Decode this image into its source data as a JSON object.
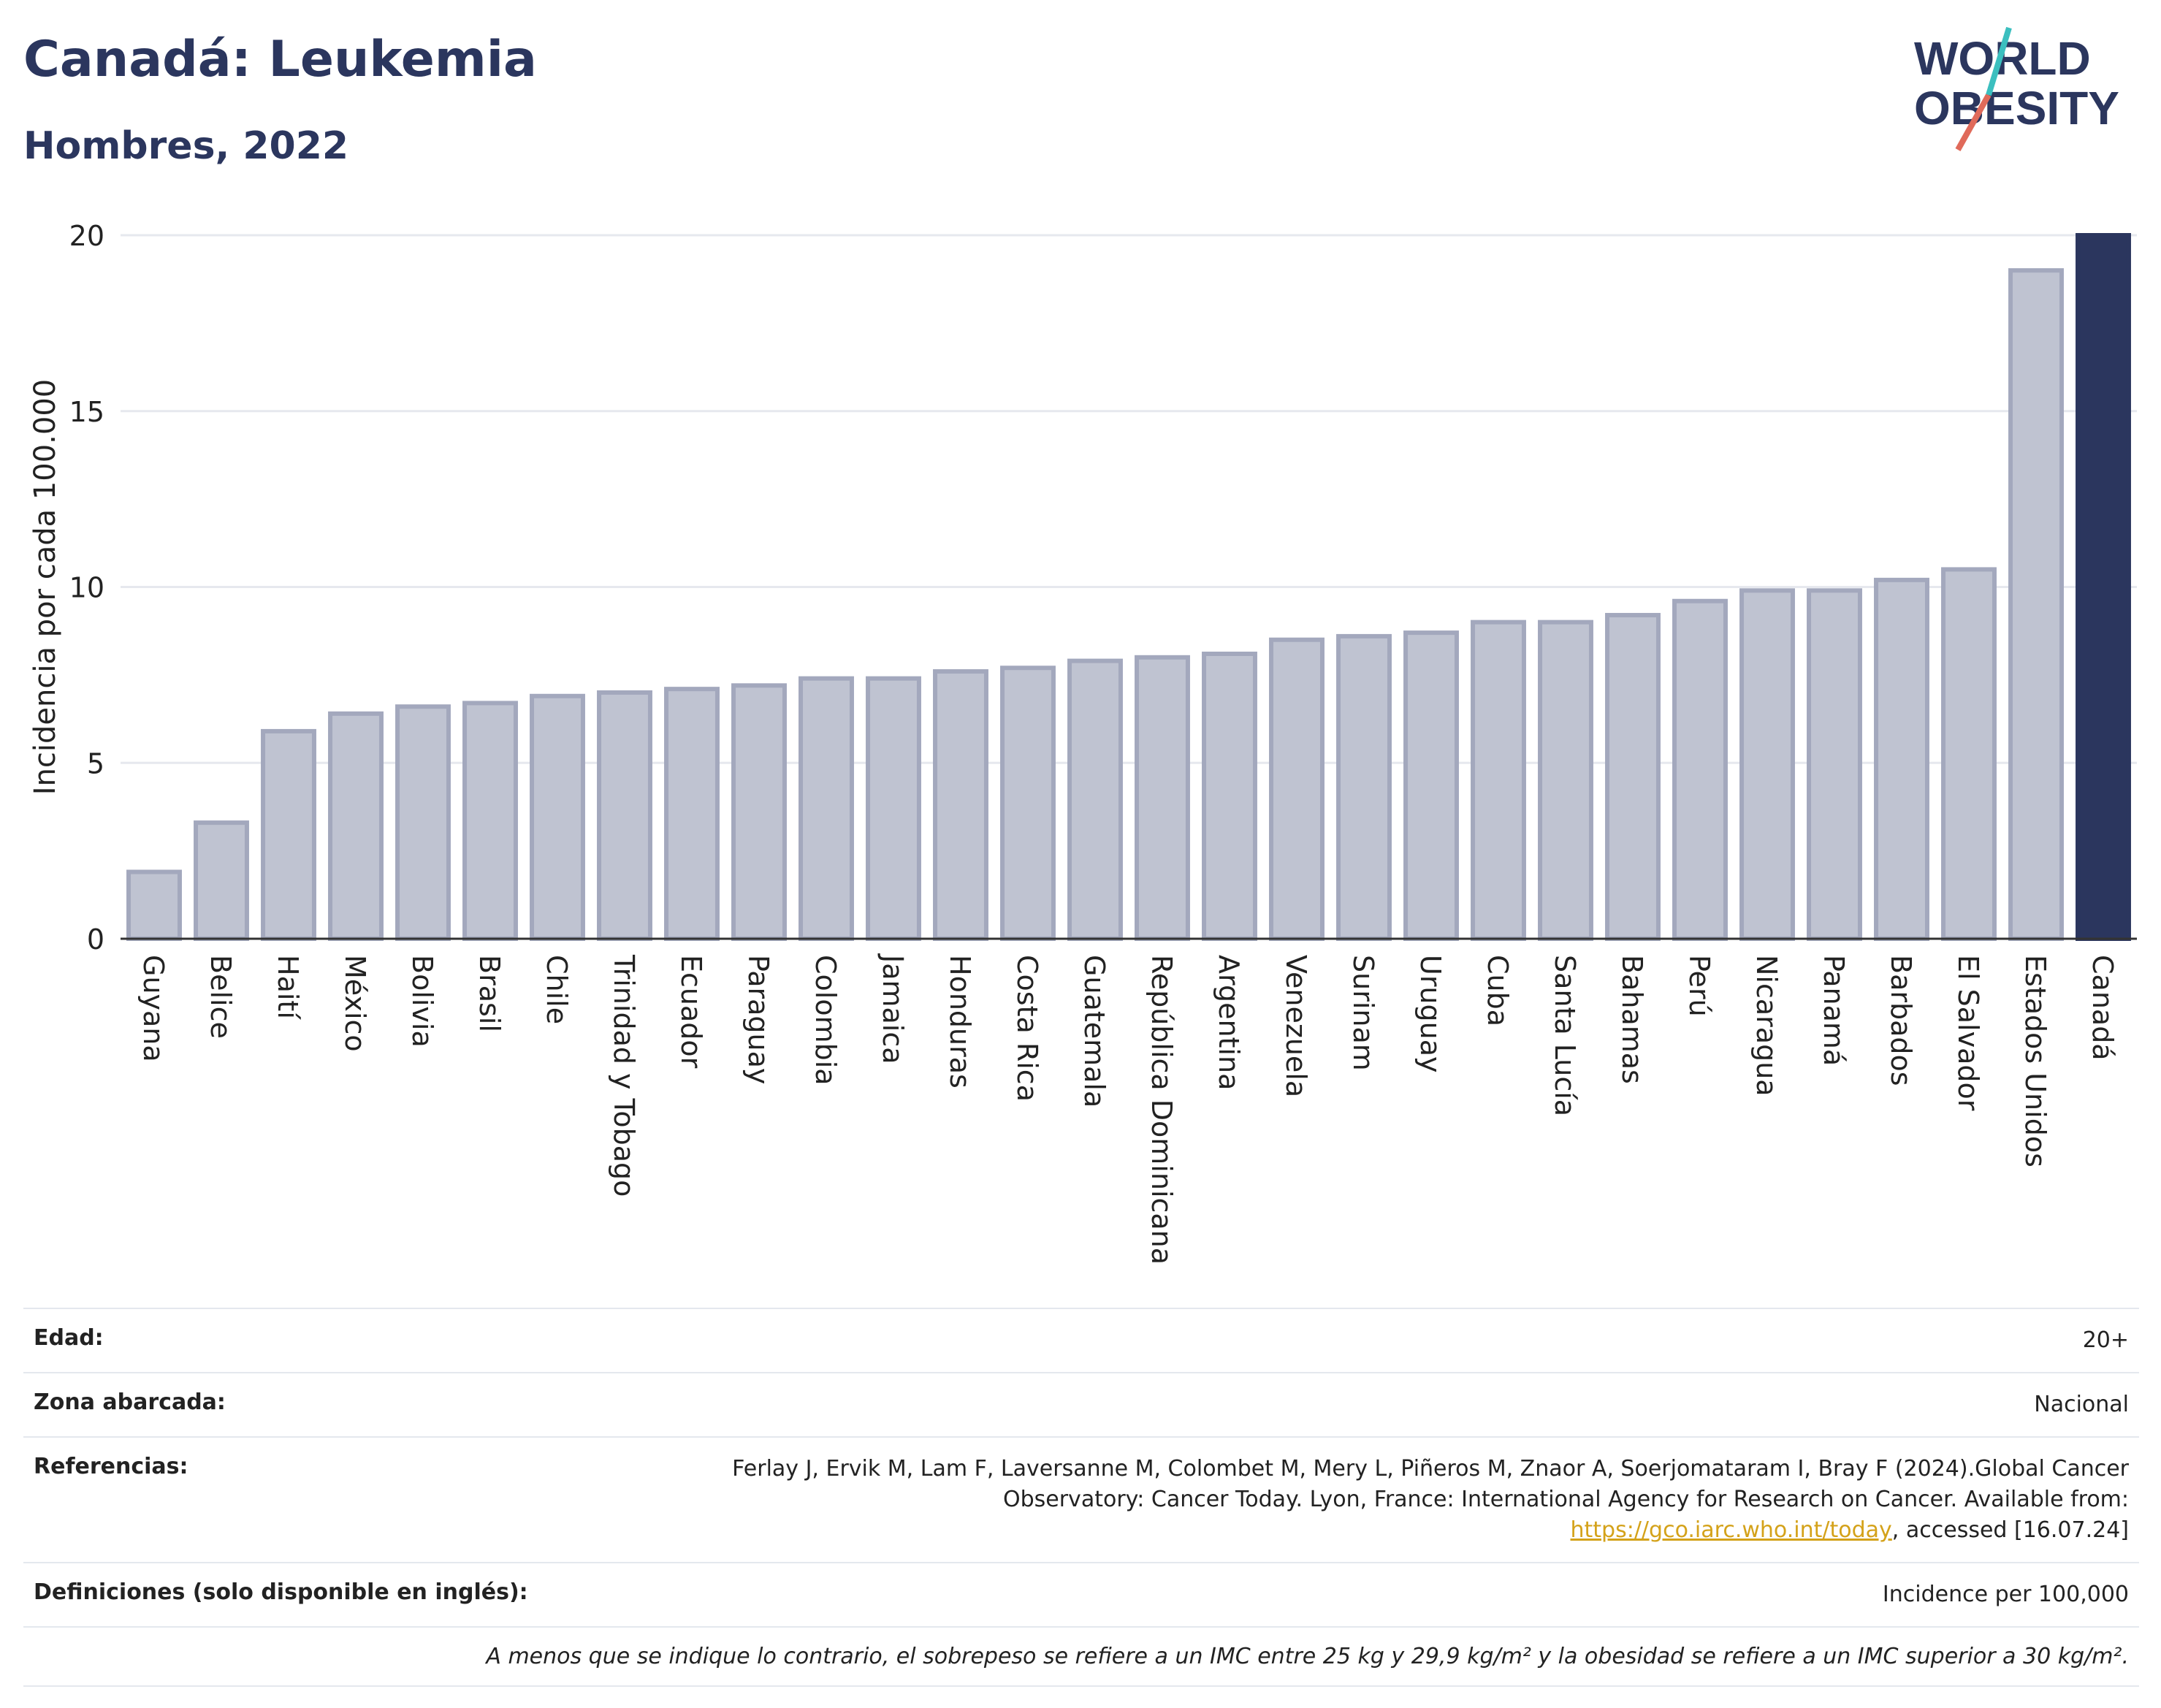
{
  "header": {
    "title": "Canadá: Leukemia",
    "subtitle": "Hombres, 2022"
  },
  "logo": {
    "line1": "WORLD",
    "line2": "OBESITY"
  },
  "chart_data": {
    "type": "bar",
    "ylabel": "Incidencia por cada 100.000",
    "ylim": [
      0,
      20
    ],
    "yticks": [
      0,
      5,
      10,
      15,
      20
    ],
    "grid": true,
    "categories": [
      "Guyana",
      "Belice",
      "Haití",
      "México",
      "Bolivia",
      "Brasil",
      "Chile",
      "Trinidad y Tobago",
      "Ecuador",
      "Paraguay",
      "Colombia",
      "Jamaica",
      "Honduras",
      "Costa Rica",
      "Guatemala",
      "República Dominicana",
      "Argentina",
      "Venezuela",
      "Surinam",
      "Uruguay",
      "Cuba",
      "Santa Lucía",
      "Bahamas",
      "Perú",
      "Nicaragua",
      "Panamá",
      "Barbados",
      "El Salvador",
      "Estados Unidos",
      "Canadá"
    ],
    "values": [
      1.9,
      3.3,
      5.9,
      6.4,
      6.6,
      6.7,
      6.9,
      7.0,
      7.1,
      7.2,
      7.4,
      7.4,
      7.6,
      7.7,
      7.9,
      8.0,
      8.1,
      8.5,
      8.6,
      8.7,
      9.0,
      9.0,
      9.2,
      9.6,
      9.9,
      9.9,
      10.2,
      10.5,
      19.0,
      20.0
    ],
    "highlight": "Canadá",
    "colors": {
      "bar": "#bfc3d1",
      "bar_border": "#a3a8bd",
      "highlight": "#2b365e",
      "grid": "#e6e8ee",
      "axis": "#333333"
    }
  },
  "meta": {
    "edad_label": "Edad:",
    "edad_value": "20+",
    "zona_label": "Zona abarcada:",
    "zona_value": "Nacional",
    "ref_label": "Referencias:",
    "ref_text_1": "Ferlay J, Ervik M, Lam F, Laversanne M, Colombet M, Mery L, Piñeros M, Znaor A, Soerjomataram I, Bray F (2024).Global Cancer Observatory: Cancer Today. Lyon, France: International Agency for Research on Cancer. Available from: ",
    "ref_link": "https://gco.iarc.who.int/today",
    "ref_text_2": ", accessed [16.07.24]",
    "def_label": "Definiciones (solo disponible en inglés):",
    "def_value": "Incidence per 100,000",
    "note": "A menos que se indique lo contrario, el sobrepeso se refiere a un IMC entre 25 kg y 29,9 kg/m² y la obesidad se refiere a un IMC superior a 30 kg/m²."
  }
}
